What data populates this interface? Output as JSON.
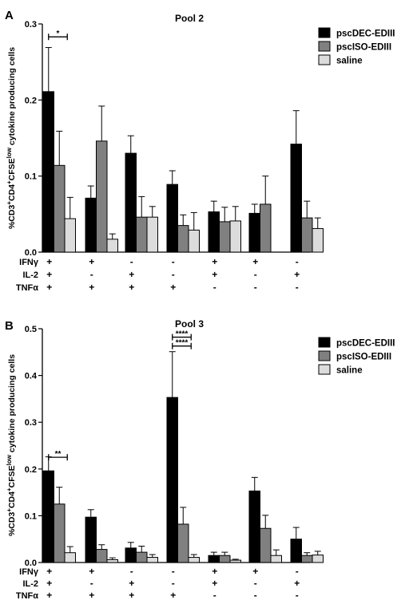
{
  "colors": {
    "pscDEC-EDIII": "#000000",
    "pscISO-EDIII": "#808080",
    "saline": "#dcdcdc"
  },
  "chart_data": [
    {
      "panel": "A",
      "type": "bar",
      "title": "Pool 2",
      "ylabel": "%CD3+CD4+CFSElow cytokine producing cells",
      "ylim": [
        0,
        0.3
      ],
      "yticks": [
        "0.0",
        "0.1",
        "0.2",
        "0.3"
      ],
      "legend_position": "top-right",
      "row_labels": [
        "IFNγ",
        "IL-2",
        "TNFα"
      ],
      "groups": [
        {
          "IFNγ": "+",
          "IL-2": "+",
          "TNFα": "+"
        },
        {
          "IFNγ": "+",
          "IL-2": "-",
          "TNFα": "+"
        },
        {
          "IFNγ": "-",
          "IL-2": "+",
          "TNFα": "+"
        },
        {
          "IFNγ": "-",
          "IL-2": "-",
          "TNFα": "+"
        },
        {
          "IFNγ": "+",
          "IL-2": "+",
          "TNFα": "-"
        },
        {
          "IFNγ": "+",
          "IL-2": "-",
          "TNFα": "-"
        },
        {
          "IFNγ": "-",
          "IL-2": "+",
          "TNFα": "-"
        }
      ],
      "series": [
        {
          "name": "pscDEC-EDIII",
          "values": [
            0.211,
            0.071,
            0.13,
            0.089,
            0.053,
            0.051,
            0.142
          ],
          "errors": [
            0.058,
            0.016,
            0.023,
            0.018,
            0.014,
            0.012,
            0.044
          ]
        },
        {
          "name": "pscISO-EDIII",
          "values": [
            0.114,
            0.146,
            0.046,
            0.035,
            0.04,
            0.063,
            0.045
          ],
          "errors": [
            0.045,
            0.046,
            0.027,
            0.014,
            0.019,
            0.037,
            0.022
          ]
        },
        {
          "name": "saline",
          "values": [
            0.044,
            0.017,
            0.046,
            0.029,
            0.041,
            null,
            0.031
          ],
          "errors": [
            0.028,
            0.007,
            0.014,
            0.023,
            0.019,
            null,
            0.014
          ]
        }
      ],
      "significance": [
        {
          "group": 0,
          "from": "pscDEC-EDIII",
          "to": "pscISO-EDIII",
          "y": 0.283,
          "label": "*"
        }
      ]
    },
    {
      "panel": "B",
      "type": "bar",
      "title": "Pool 3",
      "ylabel": "%CD3+CD4+CFSElow cytokine producing cells",
      "ylim": [
        0,
        0.5
      ],
      "yticks": [
        "0.0",
        "0.1",
        "0.2",
        "0.3",
        "0.4",
        "0.5"
      ],
      "legend_position": "top-right",
      "row_labels": [
        "IFNγ",
        "IL-2",
        "TNFα"
      ],
      "groups": [
        {
          "IFNγ": "+",
          "IL-2": "+",
          "TNFα": "+"
        },
        {
          "IFNγ": "+",
          "IL-2": "-",
          "TNFα": "+"
        },
        {
          "IFNγ": "-",
          "IL-2": "+",
          "TNFα": "+"
        },
        {
          "IFNγ": "-",
          "IL-2": "-",
          "TNFα": "+"
        },
        {
          "IFNγ": "+",
          "IL-2": "+",
          "TNFα": "-"
        },
        {
          "IFNγ": "+",
          "IL-2": "-",
          "TNFα": "-"
        },
        {
          "IFNγ": "-",
          "IL-2": "+",
          "TNFα": "-"
        }
      ],
      "series": [
        {
          "name": "pscDEC-EDIII",
          "values": [
            0.196,
            0.097,
            0.031,
            0.353,
            0.015,
            0.153,
            0.05
          ],
          "errors": [
            0.03,
            0.016,
            0.012,
            0.098,
            0.007,
            0.029,
            0.025
          ]
        },
        {
          "name": "pscISO-EDIII",
          "values": [
            0.125,
            0.028,
            0.022,
            0.082,
            0.015,
            0.073,
            0.015
          ],
          "errors": [
            0.036,
            0.01,
            0.013,
            0.036,
            0.007,
            0.028,
            0.006
          ]
        },
        {
          "name": "saline",
          "values": [
            0.021,
            0.006,
            0.011,
            0.011,
            0.005,
            0.015,
            0.016
          ],
          "errors": [
            0.013,
            0.004,
            0.006,
            0.006,
            0.002,
            0.012,
            0.008
          ]
        }
      ],
      "significance": [
        {
          "group": 0,
          "from": "pscDEC-EDIII",
          "to": "pscISO-EDIII",
          "y": 0.225,
          "label": "**"
        },
        {
          "group": 3,
          "from": "pscDEC-EDIII",
          "to": "pscISO-EDIII",
          "y": 0.463,
          "label": "****"
        },
        {
          "group": 3,
          "from": "pscDEC-EDIII",
          "to": "pscISO-EDIII",
          "y": 0.482,
          "label": "****"
        }
      ]
    }
  ]
}
